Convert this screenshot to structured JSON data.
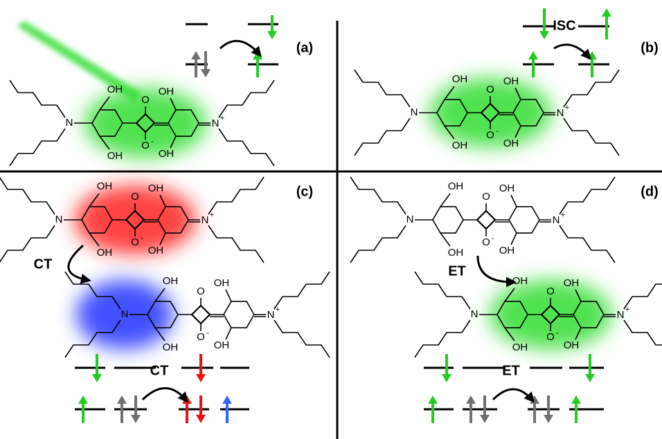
{
  "panels": [
    {
      "label": "(a)"
    },
    {
      "label": "(b)",
      "transition": "ISC"
    },
    {
      "label": "(c)",
      "transfer": "CT",
      "transition": "CT"
    },
    {
      "label": "(d)",
      "transfer": "ET",
      "transition": "ET"
    }
  ],
  "molecule": {
    "hydroxyl": "OH",
    "carbonyl": "O",
    "oxide": "O",
    "negative_charge": "-",
    "amine": "N",
    "iminium": "N",
    "positive_charge": "+"
  }
}
